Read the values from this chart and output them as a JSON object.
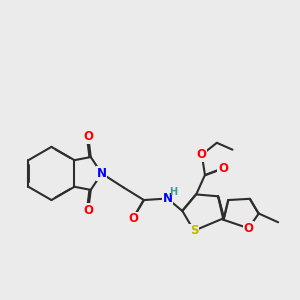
{
  "bg_color": "#ebebeb",
  "bond_color": "#2d2d2d",
  "bond_width": 1.5,
  "dbo": 0.012,
  "atom_colors": {
    "N": "#0000ff",
    "O": "#ff0000",
    "S": "#bbbb00",
    "H": "#3a9a9a",
    "C": "#2d2d2d"
  },
  "fs": 8.5
}
